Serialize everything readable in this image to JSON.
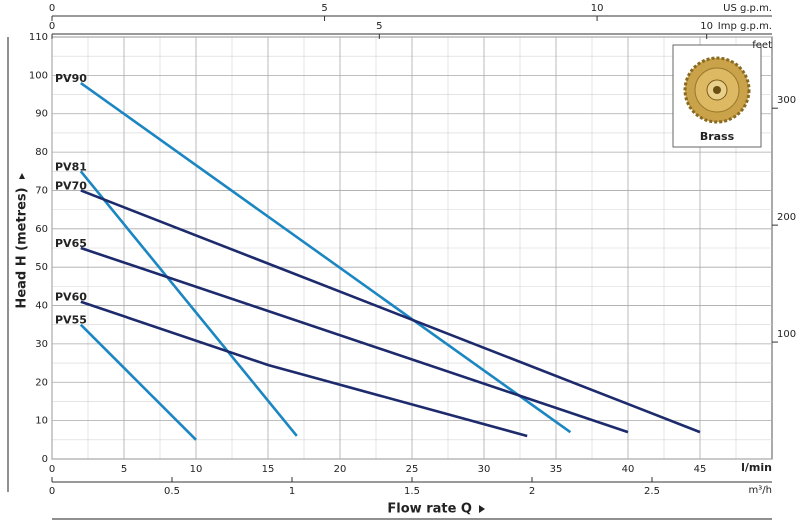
{
  "chart_data": {
    "type": "line",
    "x_label": "l/min",
    "y_label": "Head H (metres)",
    "flow_label": "Flow rate Q",
    "xlim": [
      0,
      50
    ],
    "xticks": [
      0,
      5,
      10,
      15,
      20,
      25,
      30,
      35,
      40,
      45
    ],
    "ylim": [
      0,
      110
    ],
    "yticks": [
      0,
      10,
      20,
      30,
      40,
      50,
      60,
      70,
      80,
      90,
      100,
      110
    ],
    "y2_label": "feet",
    "y2lim": [
      0,
      360.89
    ],
    "y2ticks": [
      100,
      200,
      300
    ],
    "top_axes": [
      {
        "label": "US g.p.m.",
        "lim": [
          0,
          13.209
        ],
        "ticks": [
          0,
          5,
          10
        ]
      },
      {
        "label": "Imp g.p.m.",
        "lim": [
          0,
          10.998
        ],
        "ticks": [
          0,
          5,
          10
        ]
      }
    ],
    "bottom_axis": {
      "label": "m³/h",
      "lim": [
        0,
        3.0
      ],
      "ticks": [
        0,
        0.5,
        1,
        1.5,
        2,
        2.5
      ]
    },
    "grid": true,
    "inset_label": "Brass",
    "series": [
      {
        "name": "PV90",
        "color": "#1b86c2",
        "x": [
          2,
          36
        ],
        "values": [
          98,
          7
        ]
      },
      {
        "name": "PV81",
        "color": "#1b86c2",
        "x": [
          2,
          17
        ],
        "values": [
          75,
          6
        ]
      },
      {
        "name": "PV70",
        "color": "#1d2a6c",
        "x": [
          2,
          45
        ],
        "values": [
          70,
          7
        ]
      },
      {
        "name": "PV65",
        "color": "#1d2a6c",
        "x": [
          2,
          40
        ],
        "values": [
          55,
          7
        ]
      },
      {
        "name": "PV60",
        "color": "#1d2a6c",
        "x": [
          2,
          15,
          33
        ],
        "values": [
          41,
          24.5,
          6
        ]
      },
      {
        "name": "PV55",
        "color": "#1b86c2",
        "x": [
          2,
          10
        ],
        "values": [
          35,
          5
        ]
      }
    ]
  }
}
